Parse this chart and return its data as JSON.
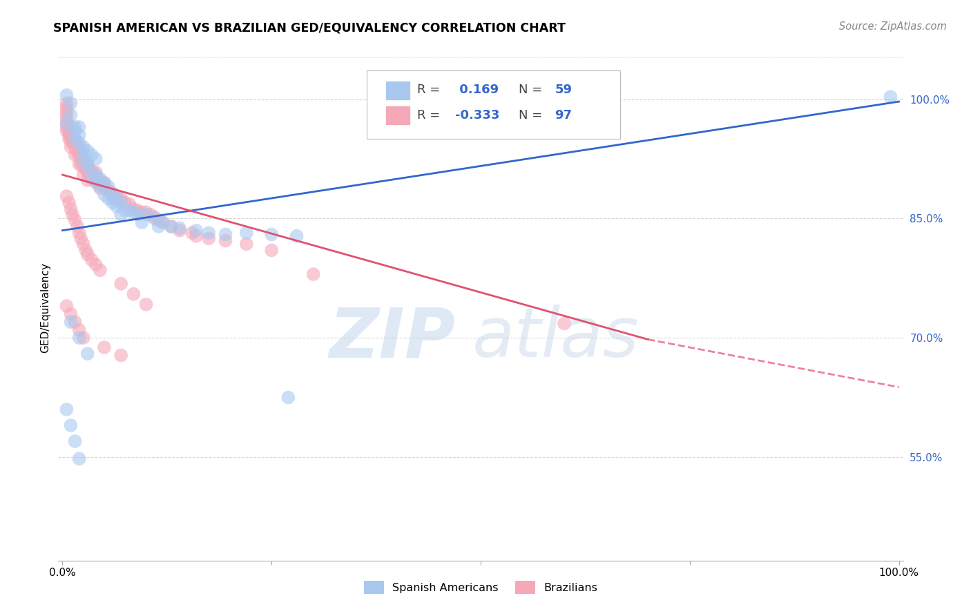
{
  "title": "SPANISH AMERICAN VS BRAZILIAN GED/EQUIVALENCY CORRELATION CHART",
  "source": "Source: ZipAtlas.com",
  "ylabel": "GED/Equivalency",
  "yticks": [
    0.55,
    0.7,
    0.85,
    1.0
  ],
  "ytick_labels": [
    "55.0%",
    "70.0%",
    "85.0%",
    "100.0%"
  ],
  "ymin": 0.42,
  "ymax": 1.055,
  "xmin": -0.005,
  "xmax": 1.005,
  "blue_R": 0.169,
  "blue_N": 59,
  "pink_R": -0.333,
  "pink_N": 97,
  "blue_color": "#A8C8F0",
  "pink_color": "#F4A8B8",
  "blue_line_color": "#3366CC",
  "pink_line_color": "#E05070",
  "grid_color": "#CCCCCC",
  "watermark_zip": "ZIP",
  "watermark_atlas": "atlas",
  "blue_line_x0": 0.0,
  "blue_line_y0": 0.835,
  "blue_line_x1": 1.0,
  "blue_line_y1": 0.997,
  "pink_line_x0": 0.0,
  "pink_line_y0": 0.905,
  "pink_line_xsolid": 0.7,
  "pink_line_ysolid": 0.698,
  "pink_line_x1": 1.0,
  "pink_line_y1": 0.638,
  "blue_scatter_x": [
    0.005,
    0.005,
    0.01,
    0.01,
    0.015,
    0.015,
    0.015,
    0.02,
    0.02,
    0.02,
    0.025,
    0.025,
    0.025,
    0.03,
    0.03,
    0.03,
    0.035,
    0.035,
    0.04,
    0.04,
    0.04,
    0.045,
    0.045,
    0.05,
    0.05,
    0.055,
    0.055,
    0.06,
    0.06,
    0.065,
    0.065,
    0.07,
    0.07,
    0.075,
    0.08,
    0.085,
    0.09,
    0.095,
    0.1,
    0.11,
    0.115,
    0.12,
    0.13,
    0.14,
    0.16,
    0.175,
    0.195,
    0.22,
    0.25,
    0.28,
    0.01,
    0.02,
    0.03,
    0.005,
    0.01,
    0.015,
    0.02,
    0.99,
    0.27
  ],
  "blue_scatter_y": [
    1.005,
    0.97,
    0.98,
    0.995,
    0.965,
    0.96,
    0.95,
    0.965,
    0.955,
    0.945,
    0.94,
    0.935,
    0.925,
    0.935,
    0.92,
    0.915,
    0.93,
    0.905,
    0.925,
    0.905,
    0.895,
    0.9,
    0.89,
    0.895,
    0.88,
    0.89,
    0.875,
    0.88,
    0.87,
    0.875,
    0.865,
    0.87,
    0.855,
    0.86,
    0.86,
    0.858,
    0.855,
    0.845,
    0.855,
    0.85,
    0.84,
    0.845,
    0.84,
    0.838,
    0.835,
    0.832,
    0.83,
    0.832,
    0.83,
    0.828,
    0.72,
    0.7,
    0.68,
    0.61,
    0.59,
    0.57,
    0.548,
    1.003,
    0.625
  ],
  "pink_scatter_x": [
    0.005,
    0.005,
    0.005,
    0.005,
    0.005,
    0.005,
    0.005,
    0.005,
    0.008,
    0.008,
    0.008,
    0.01,
    0.01,
    0.01,
    0.01,
    0.012,
    0.012,
    0.015,
    0.015,
    0.015,
    0.018,
    0.018,
    0.02,
    0.02,
    0.02,
    0.022,
    0.022,
    0.025,
    0.025,
    0.025,
    0.028,
    0.03,
    0.03,
    0.03,
    0.032,
    0.035,
    0.035,
    0.038,
    0.04,
    0.04,
    0.042,
    0.045,
    0.045,
    0.048,
    0.05,
    0.052,
    0.055,
    0.058,
    0.06,
    0.062,
    0.065,
    0.068,
    0.07,
    0.075,
    0.08,
    0.085,
    0.09,
    0.095,
    0.1,
    0.105,
    0.11,
    0.115,
    0.12,
    0.13,
    0.14,
    0.155,
    0.16,
    0.175,
    0.195,
    0.22,
    0.25,
    0.005,
    0.008,
    0.01,
    0.012,
    0.015,
    0.018,
    0.02,
    0.022,
    0.025,
    0.028,
    0.03,
    0.035,
    0.04,
    0.045,
    0.07,
    0.085,
    0.1,
    0.3,
    0.6,
    0.005,
    0.01,
    0.015,
    0.02,
    0.025,
    0.05,
    0.07
  ],
  "pink_scatter_y": [
    0.995,
    0.99,
    0.985,
    0.98,
    0.975,
    0.97,
    0.965,
    0.96,
    0.958,
    0.955,
    0.95,
    0.965,
    0.955,
    0.948,
    0.94,
    0.952,
    0.945,
    0.948,
    0.94,
    0.93,
    0.942,
    0.933,
    0.938,
    0.928,
    0.918,
    0.93,
    0.92,
    0.925,
    0.915,
    0.905,
    0.912,
    0.918,
    0.908,
    0.898,
    0.905,
    0.91,
    0.9,
    0.905,
    0.908,
    0.898,
    0.895,
    0.898,
    0.888,
    0.892,
    0.895,
    0.888,
    0.885,
    0.882,
    0.882,
    0.875,
    0.878,
    0.872,
    0.875,
    0.87,
    0.868,
    0.862,
    0.86,
    0.858,
    0.858,
    0.855,
    0.852,
    0.848,
    0.845,
    0.84,
    0.835,
    0.832,
    0.828,
    0.825,
    0.822,
    0.818,
    0.81,
    0.878,
    0.87,
    0.862,
    0.855,
    0.848,
    0.84,
    0.832,
    0.825,
    0.818,
    0.81,
    0.805,
    0.798,
    0.792,
    0.785,
    0.768,
    0.755,
    0.742,
    0.78,
    0.718,
    0.74,
    0.73,
    0.72,
    0.71,
    0.7,
    0.688,
    0.678
  ]
}
